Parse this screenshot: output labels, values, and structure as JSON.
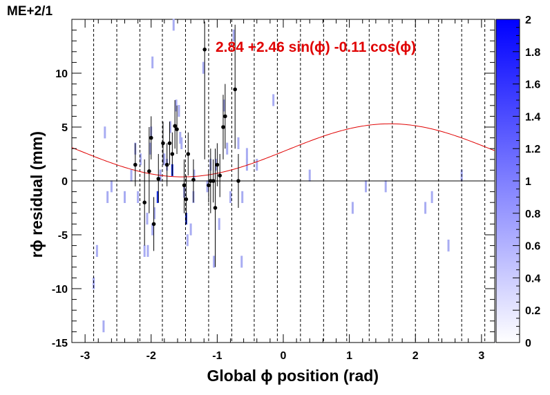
{
  "chart_data": {
    "type": "scatter",
    "title": "ME+2/1",
    "xlabel": "Global ϕ position (rad)",
    "ylabel": "rϕ residual (mm)",
    "xlim": [
      -3.2,
      3.2
    ],
    "ylim": [
      -15,
      15
    ],
    "xticks": [
      -3,
      -2,
      -1,
      0,
      1,
      2,
      3
    ],
    "xtick_labels": [
      "-3",
      "-2",
      "-1",
      "0",
      "1",
      "2",
      "3"
    ],
    "yticks": [
      -15,
      -10,
      -5,
      0,
      5,
      10
    ],
    "ytick_labels": [
      "-15",
      "-10",
      "-5",
      "0",
      "5",
      "10"
    ],
    "zlim": [
      0,
      2
    ],
    "zticks": [
      0,
      0.2,
      0.4,
      0.6,
      0.8,
      1,
      1.2,
      1.4,
      1.6,
      1.8,
      2
    ],
    "ztick_labels": [
      "0",
      "0.2",
      "0.4",
      "0.6",
      "0.8",
      "1",
      "1.2",
      "1.4",
      "1.6",
      "1.8",
      "2"
    ],
    "fit": {
      "label": "2.84 +2.46 sin(ϕ) -0.11 cos(ϕ)",
      "a": 2.84,
      "b": 2.46,
      "c": -0.11,
      "color": "#e00000"
    },
    "chamber_boundaries": [
      -2.87,
      -2.52,
      -2.17,
      -1.83,
      -1.48,
      -1.13,
      -0.78,
      -0.44,
      -0.09,
      0.26,
      0.61,
      0.96,
      1.3,
      1.65,
      2.0,
      2.35,
      2.7,
      3.05
    ],
    "profile_points": [
      {
        "x": -2.24,
        "y": 1.5,
        "ylo": -0.5,
        "yhi": 3.5
      },
      {
        "x": -2.1,
        "y": -2.0,
        "ylo": -6.0,
        "yhi": 2.0
      },
      {
        "x": -2.03,
        "y": 0.9,
        "ylo": -3.0,
        "yhi": 5.0
      },
      {
        "x": -2.0,
        "y": 4.0,
        "ylo": 2.0,
        "yhi": 6.0
      },
      {
        "x": -1.96,
        "y": -4.0,
        "ylo": -6.5,
        "yhi": -1.5
      },
      {
        "x": -1.89,
        "y": 0.2,
        "ylo": -2.0,
        "yhi": 2.5
      },
      {
        "x": -1.82,
        "y": 3.5,
        "ylo": 1.5,
        "yhi": 5.5
      },
      {
        "x": -1.76,
        "y": 1.5,
        "ylo": -0.5,
        "yhi": 3.5
      },
      {
        "x": -1.72,
        "y": 3.5,
        "ylo": 1.5,
        "yhi": 5.5
      },
      {
        "x": -1.68,
        "y": 2.5,
        "ylo": 0.5,
        "yhi": 4.5
      },
      {
        "x": -1.64,
        "y": 5.1,
        "ylo": 3.0,
        "yhi": 7.5
      },
      {
        "x": -1.61,
        "y": 4.8,
        "ylo": 2.5,
        "yhi": 7.0
      },
      {
        "x": -1.5,
        "y": -0.4,
        "ylo": -3.0,
        "yhi": 2.0
      },
      {
        "x": -1.47,
        "y": -1.7,
        "ylo": -4.0,
        "yhi": 0.5
      },
      {
        "x": -1.44,
        "y": 2.5,
        "ylo": 0.5,
        "yhi": 4.5
      },
      {
        "x": -1.36,
        "y": 0.1,
        "ylo": -2.0,
        "yhi": 2.0
      },
      {
        "x": -1.19,
        "y": 12.2,
        "ylo": 2.0,
        "yhi": 14.8
      },
      {
        "x": -1.13,
        "y": -0.4,
        "ylo": -2.0,
        "yhi": 1.0
      },
      {
        "x": -1.1,
        "y": 0.0,
        "ylo": -3.0,
        "yhi": 3.0
      },
      {
        "x": -1.06,
        "y": 0.0,
        "ylo": -2.0,
        "yhi": 2.0
      },
      {
        "x": -1.03,
        "y": -2.5,
        "ylo": -8.0,
        "yhi": 3.0
      },
      {
        "x": -1.0,
        "y": 1.5,
        "ylo": -0.5,
        "yhi": 3.5
      },
      {
        "x": -0.96,
        "y": 0.5,
        "ylo": -1.5,
        "yhi": 2.5
      },
      {
        "x": -0.91,
        "y": 5.0,
        "ylo": 2.0,
        "yhi": 8.0
      },
      {
        "x": -0.88,
        "y": 6.0,
        "ylo": 3.0,
        "yhi": 9.0
      },
      {
        "x": -0.73,
        "y": 8.5,
        "ylo": 3.0,
        "yhi": 14.5
      },
      {
        "x": -0.68,
        "y": 0.0,
        "ylo": -2.5,
        "yhi": 2.5
      }
    ],
    "colz_cells": [
      {
        "x": -2.2,
        "y": -1.5,
        "z": 1
      },
      {
        "x": -2.16,
        "y": 2.0,
        "z": 1
      },
      {
        "x": -2.06,
        "y": -3.5,
        "z": 1
      },
      {
        "x": -2.1,
        "y": -6.5,
        "z": 1
      },
      {
        "x": -2.05,
        "y": -6.5,
        "z": 1
      },
      {
        "x": -2.01,
        "y": 3.0,
        "z": 1
      },
      {
        "x": -2.0,
        "y": 4.5,
        "z": 1
      },
      {
        "x": -1.98,
        "y": -4.5,
        "z": 1
      },
      {
        "x": -1.95,
        "y": -3.0,
        "z": 1
      },
      {
        "x": -1.9,
        "y": -1.5,
        "z": 2
      },
      {
        "x": -1.86,
        "y": 0.5,
        "z": 1
      },
      {
        "x": -1.8,
        "y": 2.0,
        "z": 1
      },
      {
        "x": -1.76,
        "y": 1.5,
        "z": 1
      },
      {
        "x": -1.71,
        "y": 5.0,
        "z": 1
      },
      {
        "x": -1.68,
        "y": 1.0,
        "z": 2
      },
      {
        "x": -1.66,
        "y": 14.5,
        "z": 1
      },
      {
        "x": -1.62,
        "y": 7.0,
        "z": 1
      },
      {
        "x": -1.58,
        "y": 6.5,
        "z": 1
      },
      {
        "x": -1.54,
        "y": 3.5,
        "z": 1
      },
      {
        "x": -1.5,
        "y": -1.0,
        "z": 1
      },
      {
        "x": -1.47,
        "y": -3.5,
        "z": 2
      },
      {
        "x": -1.45,
        "y": -5.5,
        "z": 1
      },
      {
        "x": -1.4,
        "y": -4.5,
        "z": 1
      },
      {
        "x": -1.35,
        "y": 0.5,
        "z": 1
      },
      {
        "x": -1.21,
        "y": 10.5,
        "z": 1
      },
      {
        "x": -1.15,
        "y": -0.5,
        "z": 1
      },
      {
        "x": -1.1,
        "y": 1.5,
        "z": 1
      },
      {
        "x": -1.05,
        "y": -7.5,
        "z": 1
      },
      {
        "x": -1.02,
        "y": 1.5,
        "z": 1
      },
      {
        "x": -0.97,
        "y": -4.0,
        "z": 1
      },
      {
        "x": -0.9,
        "y": 7.0,
        "z": 1
      },
      {
        "x": -0.85,
        "y": 3.0,
        "z": 1
      },
      {
        "x": -0.8,
        "y": -1.5,
        "z": 1
      },
      {
        "x": -0.75,
        "y": 13.5,
        "z": 1
      },
      {
        "x": -0.68,
        "y": 3.5,
        "z": 1
      },
      {
        "x": -0.63,
        "y": -7.5,
        "z": 1
      },
      {
        "x": -0.55,
        "y": 1.5,
        "z": 1
      },
      {
        "x": -0.4,
        "y": 1.5,
        "z": 1
      },
      {
        "x": -0.15,
        "y": 7.5,
        "z": 1
      },
      {
        "x": 0.4,
        "y": 0.5,
        "z": 1
      },
      {
        "x": 1.05,
        "y": -2.5,
        "z": 1
      },
      {
        "x": 1.25,
        "y": -0.5,
        "z": 1
      },
      {
        "x": 1.55,
        "y": -0.5,
        "z": 1
      },
      {
        "x": 2.15,
        "y": -2.5,
        "z": 1
      },
      {
        "x": 2.25,
        "y": -1.5,
        "z": 1
      },
      {
        "x": 2.5,
        "y": -6.0,
        "z": 1
      },
      {
        "x": 2.7,
        "y": 0.5,
        "z": 1
      },
      {
        "x": -2.82,
        "y": -6.5,
        "z": 1
      },
      {
        "x": -2.87,
        "y": -9.5,
        "z": 1
      },
      {
        "x": -2.72,
        "y": -13.5,
        "z": 1
      },
      {
        "x": -2.7,
        "y": 4.5,
        "z": 1
      },
      {
        "x": -2.6,
        "y": -0.5,
        "z": 1
      },
      {
        "x": -2.4,
        "y": -1.5,
        "z": 1
      },
      {
        "x": -2.66,
        "y": -1.5,
        "z": 1
      },
      {
        "x": -2.3,
        "y": 0.5,
        "z": 1
      },
      {
        "x": -2.24,
        "y": 3.0,
        "z": 1
      },
      {
        "x": -1.98,
        "y": 11.0,
        "z": 1
      },
      {
        "x": -1.56,
        "y": 4.0,
        "z": 1
      },
      {
        "x": -1.36,
        "y": -1.5,
        "z": 1
      },
      {
        "x": -0.62,
        "y": -1.5,
        "z": 1
      },
      {
        "x": -0.55,
        "y": 2.5,
        "z": 1
      }
    ],
    "grid": false,
    "legend": "none"
  }
}
